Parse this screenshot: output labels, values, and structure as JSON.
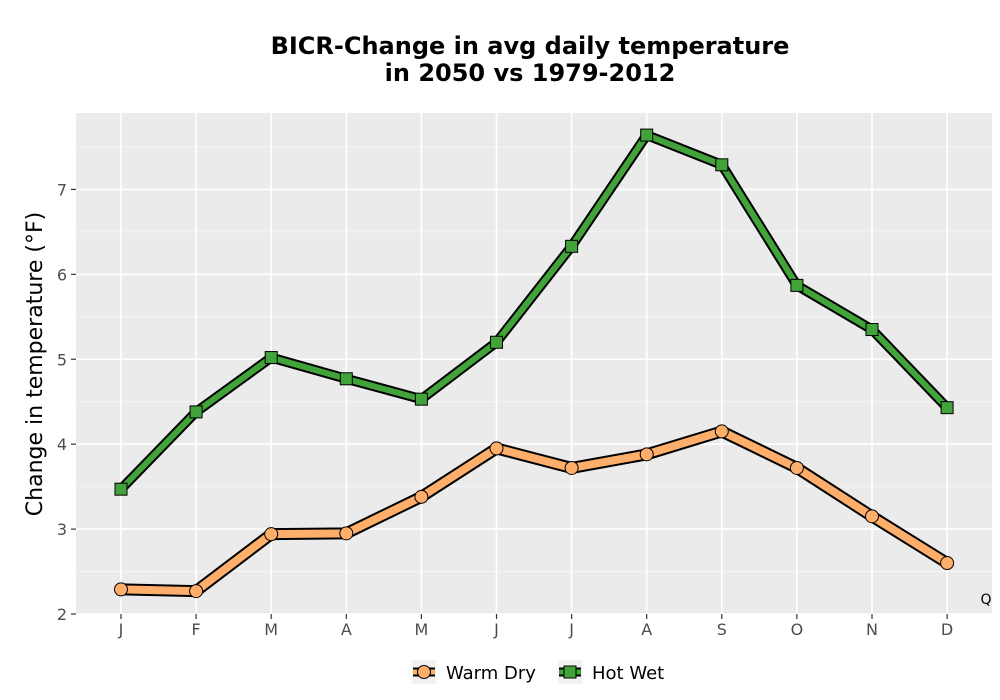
{
  "chart_data": {
    "type": "line",
    "title": [
      "BICR-Change in avg daily temperature",
      "in 2050 vs 1979-2012"
    ],
    "xlabel": "",
    "ylabel": "Change in temperature (°F)",
    "categories": [
      "J",
      "F",
      "M",
      "A",
      "M",
      "J",
      "J",
      "A",
      "S",
      "O",
      "N",
      "D"
    ],
    "ylim": [
      2,
      7.9
    ],
    "yticks": [
      2,
      3,
      4,
      5,
      6,
      7
    ],
    "grid": true,
    "legend_position": "bottom",
    "corner_note": "Q",
    "series": [
      {
        "name": "Warm Dry",
        "marker": "circle",
        "color": "#fdae6b",
        "values": [
          2.29,
          2.27,
          2.94,
          2.95,
          3.38,
          3.95,
          3.72,
          3.88,
          4.15,
          3.72,
          3.15,
          2.6
        ]
      },
      {
        "name": "Hot Wet",
        "marker": "square",
        "color": "#41a33a",
        "values": [
          3.47,
          4.38,
          5.02,
          4.77,
          4.53,
          5.2,
          6.33,
          7.64,
          7.29,
          5.87,
          5.35,
          4.43
        ]
      }
    ]
  },
  "colors": {
    "panel_bg": "#ebebeb",
    "grid_major": "#ffffff",
    "outline": "#000000"
  }
}
